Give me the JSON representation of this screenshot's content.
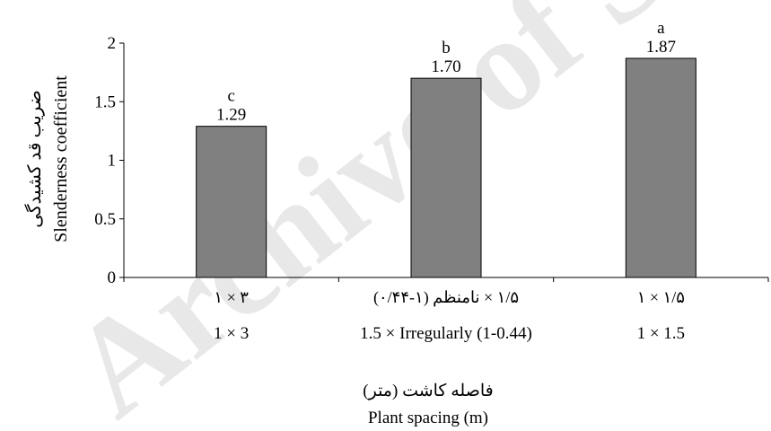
{
  "watermark": "Archive of SID",
  "chart_data": {
    "type": "bar",
    "categories": [
      {
        "fa": "۳ × ۱",
        "en": "1 × 3"
      },
      {
        "fa": "۱/۵ × نامنظم (۱-۰/۴۴)",
        "en": "1.5 × Irregularly (1-0.44)"
      },
      {
        "fa": "۱/۵ × ۱",
        "en": "1 × 1.5"
      }
    ],
    "values": [
      1.29,
      1.7,
      1.87
    ],
    "value_labels": [
      "1.29",
      "1.70",
      "1.87"
    ],
    "letters": [
      "c",
      "b",
      "a"
    ],
    "ylim": [
      0,
      2
    ],
    "yticks": [
      0,
      0.5,
      1,
      1.5,
      2
    ],
    "ytick_labels": [
      "0",
      "0.5",
      "1",
      "1.5",
      "2"
    ],
    "ylabel_fa": "ضریب قد کشیدگی",
    "ylabel_en": "Slenderness coefficient",
    "xlabel_fa": "فاصله کاشت (متر)",
    "xlabel_en": "Plant spacing (m)",
    "bar_color": "#808080",
    "bar_stroke": "#000000",
    "grid": false,
    "legend": "none"
  }
}
